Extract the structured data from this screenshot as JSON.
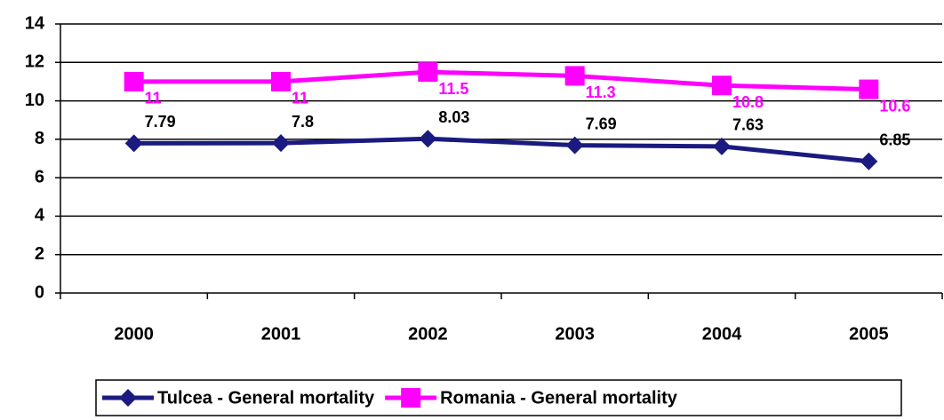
{
  "chart_data": {
    "type": "line",
    "categories": [
      "2000",
      "2001",
      "2002",
      "2003",
      "2004",
      "2005"
    ],
    "series": [
      {
        "name": "Tulcea - General mortality",
        "color": "#1a1a80",
        "marker": "diamond",
        "values": [
          7.79,
          7.8,
          8.03,
          7.69,
          7.63,
          6.85
        ]
      },
      {
        "name": "Romania - General mortality",
        "color": "#ff00ff",
        "marker": "square",
        "values": [
          11,
          11,
          11.5,
          11.3,
          10.8,
          10.6
        ]
      }
    ],
    "ylim": [
      0,
      14
    ],
    "yticks": [
      0,
      2,
      4,
      6,
      8,
      10,
      12,
      14
    ],
    "grid": true,
    "legend": "bottom"
  }
}
